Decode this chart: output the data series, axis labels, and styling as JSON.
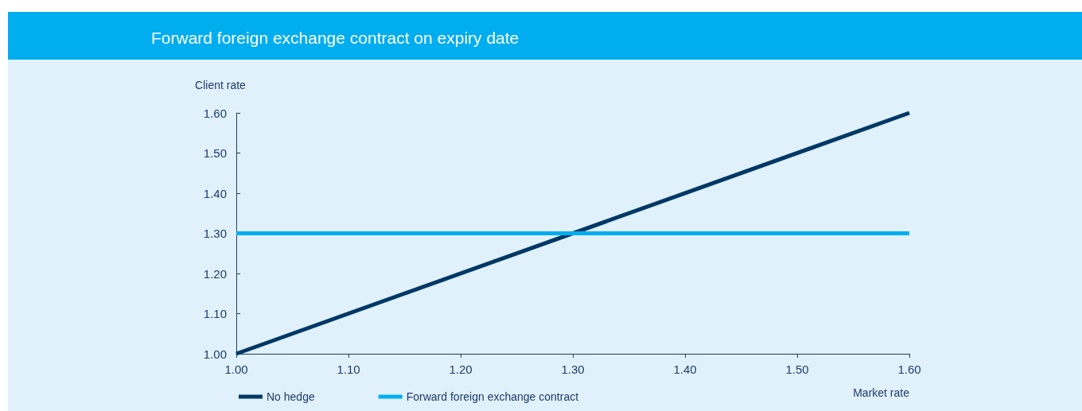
{
  "chart_data": {
    "type": "line",
    "title": "Forward foreign exchange contract on expiry date",
    "xlabel": "Market rate",
    "ylabel": "Client rate",
    "xlim": [
      1.0,
      1.6
    ],
    "xticks": [
      {
        "value": 1.0,
        "label": "1.00"
      },
      {
        "value": 1.1,
        "label": "1.10"
      },
      {
        "value": 1.2,
        "label": "1.20"
      },
      {
        "value": 1.3,
        "label": "1.30"
      },
      {
        "value": 1.4,
        "label": "1.40"
      },
      {
        "value": 1.5,
        "label": "1.50"
      },
      {
        "value": 1.6,
        "label": "1.60"
      }
    ],
    "ylim": [
      1.0,
      1.6
    ],
    "yticks": [
      {
        "value": 1.0,
        "label": "1.00"
      },
      {
        "value": 1.1,
        "label": "1.10"
      },
      {
        "value": 1.2,
        "label": "1.20"
      },
      {
        "value": 1.3,
        "label": "1.30"
      },
      {
        "value": 1.4,
        "label": "1.40"
      },
      {
        "value": 1.5,
        "label": "1.50"
      },
      {
        "value": 1.6,
        "label": "1.60"
      }
    ],
    "series": [
      {
        "name": "No hedge",
        "color": "#003865",
        "values": [
          1.0,
          1.6
        ]
      },
      {
        "name": "Forward foreign exchange contract",
        "color": "#00aeef",
        "values": [
          1.3,
          1.3
        ]
      }
    ],
    "x": [
      1.0,
      1.6
    ],
    "marker": "none",
    "line_style": "solid",
    "grid": false,
    "legend": "bottom left"
  }
}
